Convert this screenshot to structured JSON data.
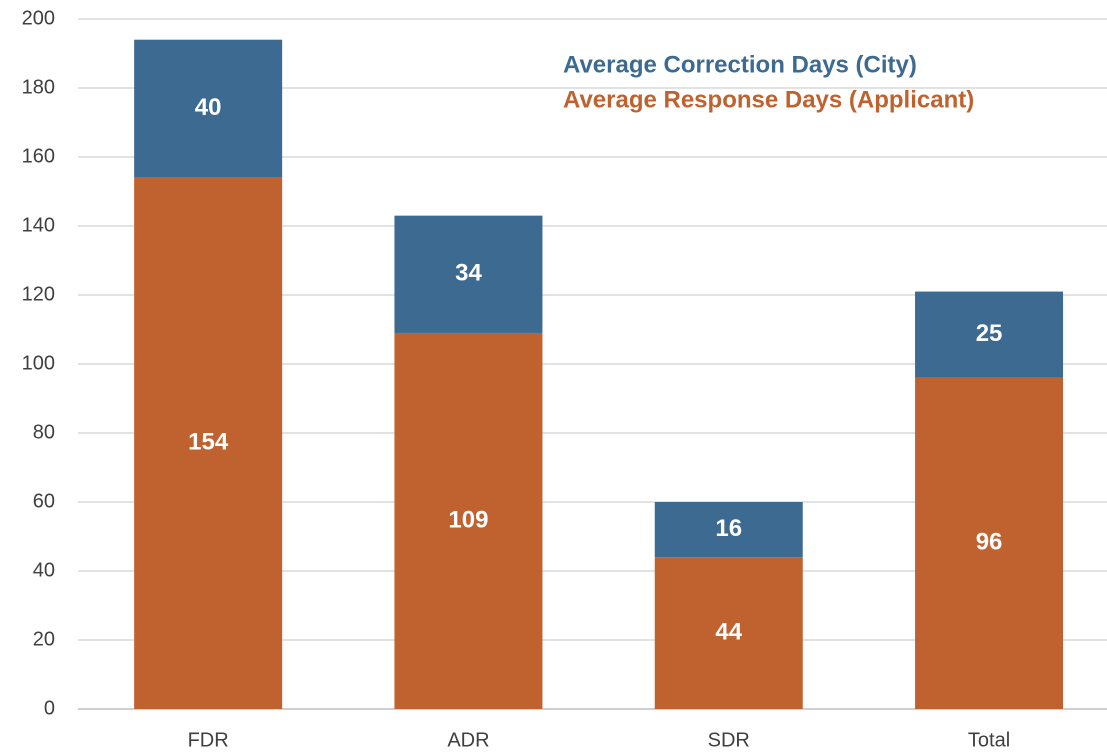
{
  "chart_data": {
    "type": "stacked_bar",
    "categories": [
      "FDR",
      "ADR",
      "SDR",
      "Total"
    ],
    "series": [
      {
        "name": "Average Response Days (Applicant)",
        "color": "#c0622f",
        "values": [
          154,
          109,
          44,
          96
        ]
      },
      {
        "name": "Average Correction Days (City)",
        "color": "#3d6a91",
        "values": [
          40,
          34,
          16,
          25
        ]
      }
    ],
    "ylim": [
      0,
      200
    ],
    "yticks": [
      0,
      20,
      40,
      60,
      80,
      100,
      120,
      140,
      160,
      180,
      200
    ],
    "grid": true,
    "legend": "top-right"
  }
}
